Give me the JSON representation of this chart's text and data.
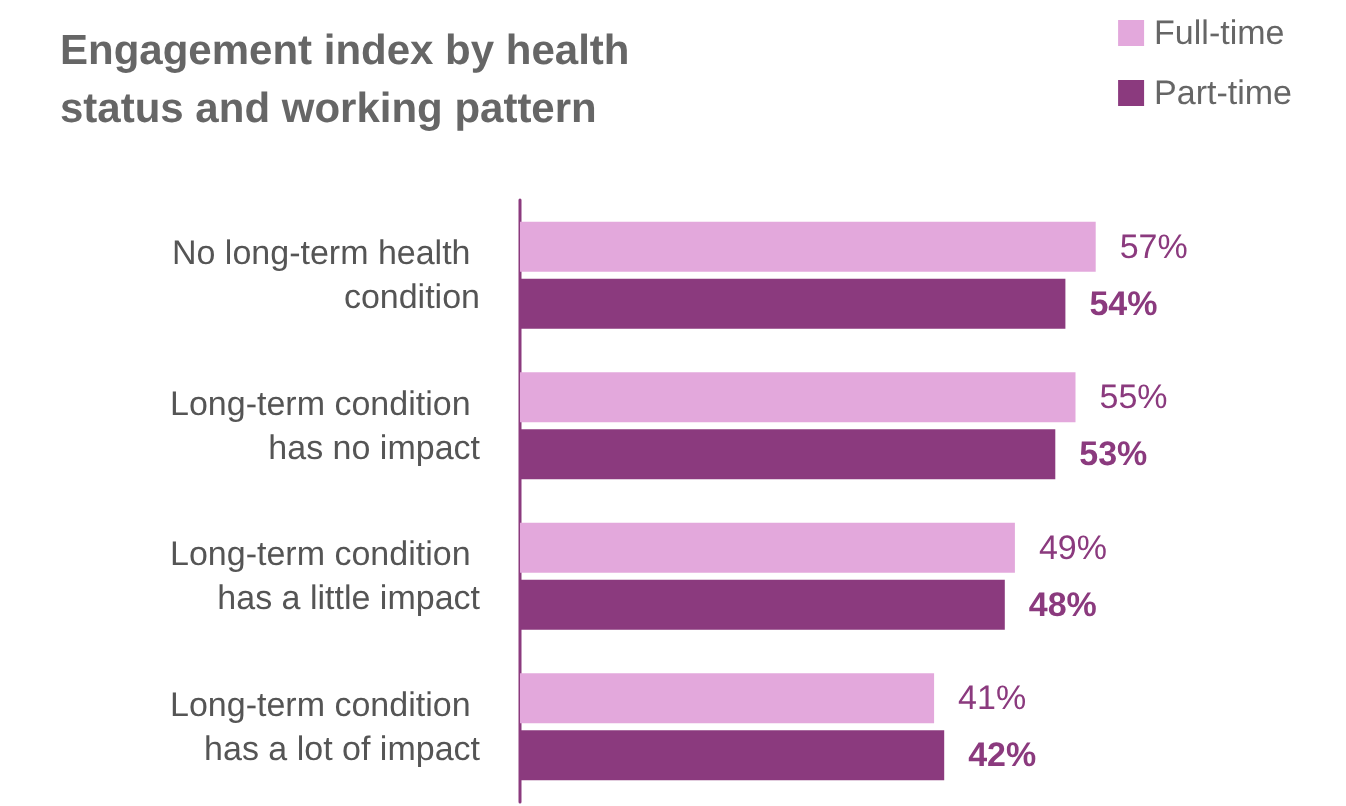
{
  "chart_data": {
    "type": "bar",
    "orientation": "horizontal",
    "title": "Engagement index by health status and working pattern",
    "categories": [
      "No long-term health condition",
      "Long-term condition has no impact",
      "Long-term condition has a little impact",
      "Long-term condition has a lot of impact"
    ],
    "series": [
      {
        "name": "Full-time",
        "color": "#e3a8dc",
        "values": [
          57,
          55,
          49,
          41
        ],
        "value_labels": [
          "57%",
          "55%",
          "49%",
          "41%"
        ]
      },
      {
        "name": "Part-time",
        "color": "#8b3a7e",
        "values": [
          54,
          53,
          48,
          42
        ],
        "value_labels": [
          "54%",
          "53%",
          "48%",
          "42%"
        ]
      }
    ],
    "tick_labels": "y",
    "legend": "top right"
  }
}
